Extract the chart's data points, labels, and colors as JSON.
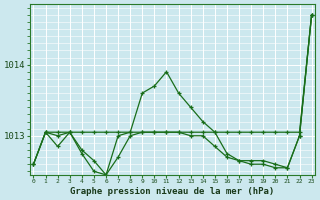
{
  "xlabel": "Graphe pression niveau de la mer (hPa)",
  "bg_color": "#cce8ee",
  "grid_color": "#ffffff",
  "line_color": "#1a6e1a",
  "ylim": [
    1012.45,
    1014.85
  ],
  "xlim": [
    -0.3,
    23.3
  ],
  "yticks": [
    1013,
    1014
  ],
  "series1": [
    1012.6,
    1013.05,
    1013.05,
    1013.05,
    1013.05,
    1013.05,
    1013.05,
    1013.05,
    1013.05,
    1013.05,
    1013.05,
    1013.05,
    1013.05,
    1013.05,
    1013.05,
    1013.05,
    1013.05,
    1013.05,
    1013.05,
    1013.05,
    1013.05,
    1013.05,
    1013.05,
    1014.7
  ],
  "series2": [
    1012.6,
    1013.05,
    1013.0,
    1013.05,
    1012.8,
    1012.65,
    1012.45,
    1013.0,
    1013.05,
    1013.6,
    1013.7,
    1013.9,
    1013.6,
    1013.4,
    1013.2,
    1013.05,
    1012.75,
    1012.65,
    1012.65,
    1012.65,
    1012.6,
    1012.55,
    1013.0,
    1014.7
  ],
  "series3": [
    1012.6,
    1013.05,
    1012.85,
    1013.05,
    1012.75,
    1012.5,
    1012.45,
    1012.7,
    1013.0,
    1013.05,
    1013.05,
    1013.05,
    1013.05,
    1013.0,
    1013.0,
    1012.85,
    1012.7,
    1012.65,
    1012.6,
    1012.6,
    1012.55,
    1012.55,
    1013.0,
    1014.7
  ]
}
